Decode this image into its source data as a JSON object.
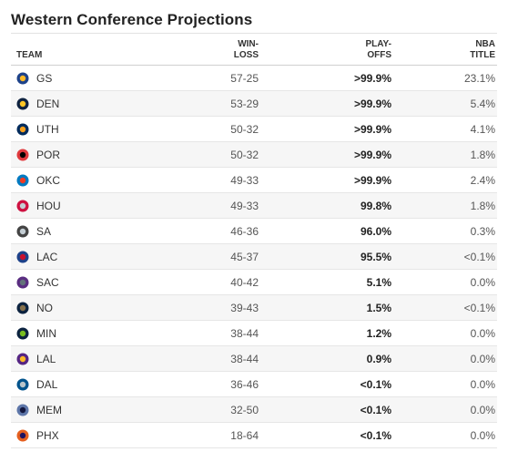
{
  "title": "Western Conference Projections",
  "columns": {
    "team": "TEAM",
    "winloss_1": "WIN-",
    "winloss_2": "LOSS",
    "playoffs_1": "PLAY-",
    "playoffs_2": "OFFS",
    "nba_1": "NBA",
    "nba_2": "TITLE"
  },
  "rows": [
    {
      "team": "GS",
      "logo": "warriors-logo-icon",
      "color": "#1d428a",
      "accent": "#fdb927",
      "winloss": "57-25",
      "playoffs": ">99.9%",
      "title": "23.1%"
    },
    {
      "team": "DEN",
      "logo": "nuggets-logo-icon",
      "color": "#0e2240",
      "accent": "#fec524",
      "winloss": "53-29",
      "playoffs": ">99.9%",
      "title": "5.4%"
    },
    {
      "team": "UTH",
      "logo": "jazz-logo-icon",
      "color": "#002b5c",
      "accent": "#f9a01b",
      "winloss": "50-32",
      "playoffs": ">99.9%",
      "title": "4.1%"
    },
    {
      "team": "POR",
      "logo": "blazers-logo-icon",
      "color": "#e03a3e",
      "accent": "#000000",
      "winloss": "50-32",
      "playoffs": ">99.9%",
      "title": "1.8%"
    },
    {
      "team": "OKC",
      "logo": "thunder-logo-icon",
      "color": "#007ac1",
      "accent": "#ef3b24",
      "winloss": "49-33",
      "playoffs": ">99.9%",
      "title": "2.4%"
    },
    {
      "team": "HOU",
      "logo": "rockets-logo-icon",
      "color": "#ce1141",
      "accent": "#c4ced4",
      "winloss": "49-33",
      "playoffs": "99.8%",
      "title": "1.8%"
    },
    {
      "team": "SA",
      "logo": "spurs-logo-icon",
      "color": "#444444",
      "accent": "#c4ced4",
      "winloss": "46-36",
      "playoffs": "96.0%",
      "title": "0.3%"
    },
    {
      "team": "LAC",
      "logo": "clippers-logo-icon",
      "color": "#1d428a",
      "accent": "#c8102e",
      "winloss": "45-37",
      "playoffs": "95.5%",
      "title": "<0.1%"
    },
    {
      "team": "SAC",
      "logo": "kings-logo-icon",
      "color": "#5a2d81",
      "accent": "#63727a",
      "winloss": "40-42",
      "playoffs": "5.1%",
      "title": "0.0%"
    },
    {
      "team": "NO",
      "logo": "pelicans-logo-icon",
      "color": "#0c2340",
      "accent": "#85714d",
      "winloss": "39-43",
      "playoffs": "1.5%",
      "title": "<0.1%"
    },
    {
      "team": "MIN",
      "logo": "wolves-logo-icon",
      "color": "#0c2340",
      "accent": "#78be20",
      "winloss": "38-44",
      "playoffs": "1.2%",
      "title": "0.0%"
    },
    {
      "team": "LAL",
      "logo": "lakers-logo-icon",
      "color": "#552583",
      "accent": "#fdb927",
      "winloss": "38-44",
      "playoffs": "0.9%",
      "title": "0.0%"
    },
    {
      "team": "DAL",
      "logo": "mavericks-logo-icon",
      "color": "#00538c",
      "accent": "#b8c4ca",
      "winloss": "36-46",
      "playoffs": "<0.1%",
      "title": "0.0%"
    },
    {
      "team": "MEM",
      "logo": "grizzlies-logo-icon",
      "color": "#5d76a9",
      "accent": "#12173f",
      "winloss": "32-50",
      "playoffs": "<0.1%",
      "title": "0.0%"
    },
    {
      "team": "PHX",
      "logo": "suns-logo-icon",
      "color": "#e56020",
      "accent": "#1d1160",
      "winloss": "18-64",
      "playoffs": "<0.1%",
      "title": "0.0%"
    }
  ]
}
